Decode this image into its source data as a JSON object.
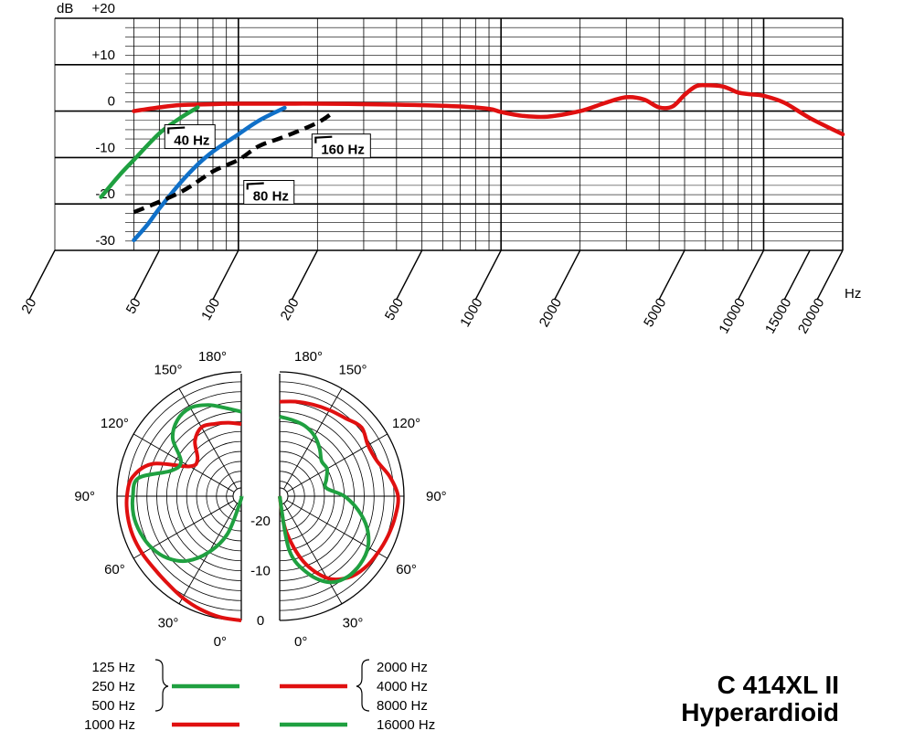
{
  "title": {
    "model": "C 414XL II",
    "pattern": "Hyperardioid"
  },
  "chart_data": [
    {
      "type": "line",
      "name": "frequency-response",
      "xscale": "log",
      "xlim": [
        20,
        20000
      ],
      "ylim": [
        -30,
        20
      ],
      "xlabel": "Hz",
      "ylabel": "dB",
      "y_ticks": [
        {
          "value": 20,
          "label": "+20"
        },
        {
          "value": 10,
          "label": "+10"
        },
        {
          "value": 0,
          "label": "0"
        },
        {
          "value": -10,
          "label": "-10"
        },
        {
          "value": -20,
          "label": "-20"
        },
        {
          "value": -30,
          "label": "-30"
        }
      ],
      "x_ticks": [
        {
          "value": 20,
          "label": "20"
        },
        {
          "value": 50,
          "label": "50"
        },
        {
          "value": 100,
          "label": "100"
        },
        {
          "value": 200,
          "label": "200"
        },
        {
          "value": 500,
          "label": "500"
        },
        {
          "value": 1000,
          "label": "1000"
        },
        {
          "value": 2000,
          "label": "2000"
        },
        {
          "value": 5000,
          "label": "5000"
        },
        {
          "value": 10000,
          "label": "10000"
        },
        {
          "value": 15000,
          "label": "15000"
        },
        {
          "value": 20000,
          "label": "20000"
        }
      ],
      "grid": true,
      "series": [
        {
          "name": "",
          "color": "#e01010",
          "dash": false,
          "x": [
            40,
            50,
            60,
            80,
            100,
            150,
            200,
            400,
            700,
            900,
            1000,
            1200,
            1500,
            2000,
            2500,
            3000,
            3500,
            4000,
            4500,
            5000,
            5500,
            6000,
            7000,
            8000,
            9000,
            10000,
            12000,
            15000,
            20000
          ],
          "y": [
            0,
            0.8,
            1.3,
            1.5,
            1.6,
            1.6,
            1.6,
            1.4,
            1.0,
            0.5,
            -0.2,
            -1.0,
            -1.2,
            0,
            1.8,
            3.0,
            2.5,
            0.8,
            1.0,
            3.5,
            5.3,
            5.6,
            5.3,
            4.0,
            3.6,
            3.3,
            1.8,
            -1.5,
            -5.0
          ]
        },
        {
          "name": "",
          "color": "#1fa040",
          "dash": false,
          "x": [
            30,
            35,
            40,
            50,
            60,
            70
          ],
          "y": [
            -18.5,
            -14,
            -10.5,
            -4.8,
            -1.5,
            0.8
          ]
        },
        {
          "name": "",
          "color": "#1070c8",
          "dash": false,
          "x": [
            40,
            45,
            50,
            60,
            70,
            80,
            100,
            120,
            150
          ],
          "y": [
            -27.8,
            -24.5,
            -21,
            -15.5,
            -11.5,
            -8.7,
            -5.0,
            -2.0,
            0.7
          ]
        },
        {
          "name": "",
          "color": "#000000",
          "dash": true,
          "x": [
            40,
            60,
            80,
            100,
            120,
            150,
            200,
            230
          ],
          "y": [
            -21.8,
            -17.5,
            -13,
            -10.5,
            -7.5,
            -5.5,
            -2.5,
            -0.2
          ]
        }
      ],
      "annotations": [
        {
          "text": "40 Hz",
          "at_hz": 55,
          "at_db": -5.5
        },
        {
          "text": "80 Hz",
          "at_hz": 110,
          "at_db": -17.5
        },
        {
          "text": "160 Hz",
          "at_hz": 200,
          "at_db": -7.5
        }
      ]
    },
    {
      "type": "polar",
      "name": "polar-pattern",
      "r_ticks": [
        {
          "value": 0,
          "label": "0"
        },
        {
          "value": -10,
          "label": "-10"
        },
        {
          "value": -20,
          "label": "-20"
        }
      ],
      "rlim": [
        -25,
        0
      ],
      "angle_labels_left": [
        {
          "deg": 0,
          "label": "0°"
        },
        {
          "deg": 30,
          "label": "30°"
        },
        {
          "deg": 60,
          "label": "60°"
        },
        {
          "deg": 90,
          "label": "90°"
        },
        {
          "deg": 120,
          "label": "120°"
        },
        {
          "deg": 150,
          "label": "150°"
        },
        {
          "deg": 180,
          "label": "180°"
        }
      ],
      "angle_labels_right": [
        {
          "deg": 0,
          "label": "0°"
        },
        {
          "deg": 30,
          "label": "30°"
        },
        {
          "deg": 60,
          "label": "60°"
        },
        {
          "deg": 90,
          "label": "90°"
        },
        {
          "deg": 120,
          "label": "120°"
        },
        {
          "deg": 150,
          "label": "150°"
        },
        {
          "deg": 180,
          "label": "180°"
        }
      ],
      "left_series": [
        {
          "name": "1000 Hz",
          "color": "#e01010",
          "deg": [
            0,
            10,
            20,
            30,
            40,
            50,
            60,
            70,
            80,
            90,
            100,
            110,
            120,
            130,
            140,
            150,
            160,
            170,
            180
          ],
          "db": [
            0,
            -0.3,
            -0.8,
            -1.4,
            -2.0,
            -2.2,
            -2.0,
            -1.8,
            -1.8,
            -2.0,
            -2.8,
            -6.0,
            -13.0,
            -13.5,
            -10.5,
            -9.0,
            -9.5,
            -10.0,
            -10.5
          ]
        },
        {
          "name": "125 Hz, 250 Hz, 500 Hz",
          "color": "#1fa040",
          "deg": [
            0,
            10,
            20,
            30,
            40,
            50,
            60,
            70,
            80,
            90,
            100,
            110,
            120,
            130,
            140,
            150,
            160,
            170,
            180
          ],
          "db": [
            -25,
            -24.0,
            -17.0,
            -12.0,
            -8.0,
            -5.6,
            -4.2,
            -3.4,
            -3.0,
            -3.2,
            -4.0,
            -10.0,
            -11.0,
            -7.0,
            -5.0,
            -4.5,
            -5.5,
            -7.0,
            -8.0
          ]
        }
      ],
      "right_series": [
        {
          "name": "2000 Hz, 4000 Hz, 8000 Hz",
          "color": "#e01010",
          "deg": [
            0,
            10,
            20,
            30,
            40,
            50,
            60,
            70,
            80,
            90,
            100,
            110,
            120,
            130,
            140,
            150,
            160,
            170,
            180
          ],
          "db": [
            -25,
            -18.0,
            -11.0,
            -6.0,
            -3.6,
            -2.6,
            -2.2,
            -1.8,
            -1.4,
            -1.2,
            -2.5,
            -4.2,
            -4.5,
            -3.5,
            -4.5,
            -5.0,
            -5.4,
            -5.7,
            -6.0
          ]
        },
        {
          "name": "16000 Hz",
          "color": "#1fa040",
          "deg": [
            0,
            10,
            20,
            30,
            40,
            50,
            60,
            70,
            80,
            90,
            100,
            110,
            120,
            130,
            140,
            150,
            160,
            170,
            180
          ],
          "db": [
            -25,
            -14.0,
            -8.5,
            -5.0,
            -3.8,
            -3.8,
            -4.5,
            -6.3,
            -9.0,
            -12.0,
            -15.5,
            -15.0,
            -14.0,
            -14.0,
            -12.5,
            -11.0,
            -10.0,
            -9.5,
            -9.0
          ]
        }
      ]
    }
  ],
  "legend": {
    "left": [
      {
        "label": "125 Hz"
      },
      {
        "label": "250 Hz"
      },
      {
        "label": "500 Hz"
      },
      {
        "label": "1000 Hz"
      }
    ],
    "right": [
      {
        "label": "2000 Hz"
      },
      {
        "label": "4000 Hz"
      },
      {
        "label": "8000 Hz"
      },
      {
        "label": "16000 Hz"
      }
    ]
  },
  "colors": {
    "red": "#e01010",
    "green": "#1fa040",
    "blue": "#1070c8",
    "black": "#000000"
  }
}
